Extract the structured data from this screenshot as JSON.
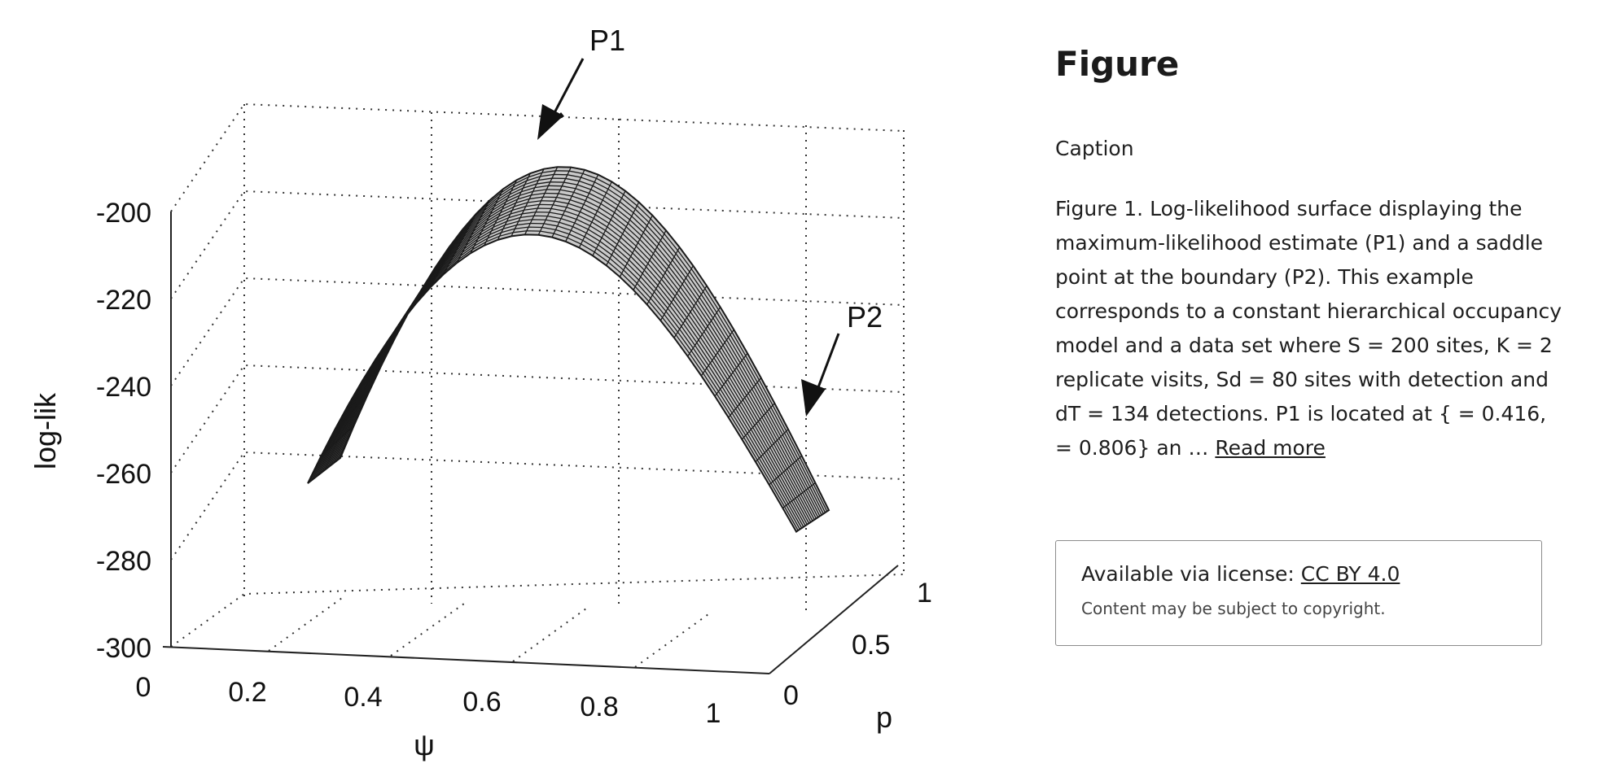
{
  "figure": {
    "alt": "Log-likelihood surface plot",
    "callouts": {
      "p1": "P1",
      "p2": "P2"
    },
    "axes": {
      "vertical_title": "log-lik",
      "psi_title": "ψ",
      "p_title": "p",
      "vertical_ticks": [
        "-200",
        "-220",
        "-240",
        "-260",
        "-280",
        "-300"
      ],
      "psi_ticks": [
        "0",
        "0.2",
        "0.4",
        "0.6",
        "0.8",
        "1"
      ],
      "p_ticks": [
        "0",
        "0.5",
        "1"
      ]
    },
    "surface_color": "#c9c9c9",
    "mesh_color": "#1a1a1a"
  },
  "panel": {
    "heading": "Figure",
    "caption_label": "Caption",
    "caption_text": "Figure 1. Log-likelihood surface displaying the maximum-likelihood estimate (P1) and a saddle point at the boundary (P2). This example corresponds to a constant hierarchical occupancy model and a data set where S = 200 sites, K = 2 replicate visits, Sd = 80 sites with detection and dT = 134 detections. P1 is located at { = 0.416,  = 0.806} an …",
    "read_more": "Read more",
    "license_prefix": "Available via license:",
    "license_name": "CC BY 4.0",
    "copyright_note": "Content may be subject to copyright."
  }
}
